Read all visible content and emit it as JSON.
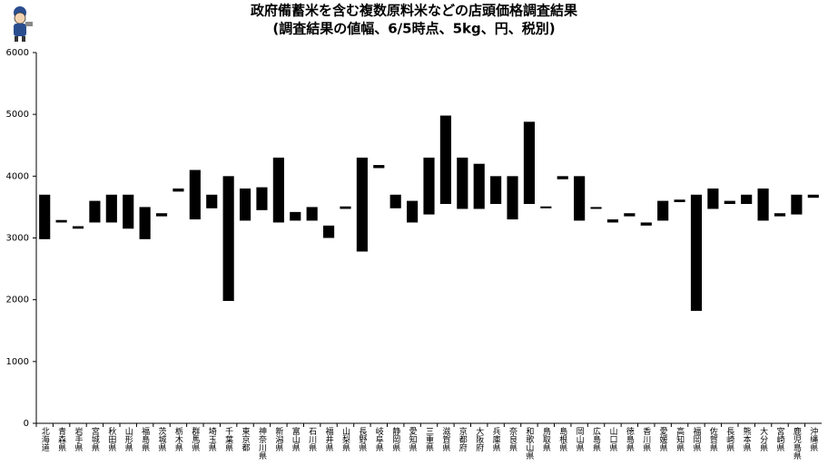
{
  "chart_data": {
    "type": "range_bar",
    "title": "政府備蓄米を含む複数原料米などの店頭価格調査結果",
    "subtitle": "(調査結果の値幅、6/5時点、5kg、円、税別)",
    "categories": [
      "北海道",
      "青森県",
      "岩手県",
      "宮城県",
      "秋田県",
      "山形県",
      "福島県",
      "茨城県",
      "栃木県",
      "群馬県",
      "埼玉県",
      "千葉県",
      "東京都",
      "神奈川県",
      "新潟県",
      "富山県",
      "石川県",
      "福井県",
      "山梨県",
      "長野県",
      "岐阜県",
      "静岡県",
      "愛知県",
      "三重県",
      "滋賀県",
      "京都府",
      "大阪府",
      "兵庫県",
      "奈良県",
      "和歌山県",
      "鳥取県",
      "島根県",
      "岡山県",
      "広島県",
      "山口県",
      "徳島県",
      "香川県",
      "愛媛県",
      "高知県",
      "福岡県",
      "佐賀県",
      "長崎県",
      "熊本県",
      "大分県",
      "宮崎県",
      "鹿児島県",
      "沖縄県"
    ],
    "low": [
      2980,
      3250,
      3150,
      3250,
      3250,
      3150,
      2980,
      3350,
      3750,
      3300,
      3480,
      1980,
      3280,
      3450,
      3250,
      3280,
      3280,
      3000,
      3470,
      2780,
      4130,
      3480,
      3250,
      3380,
      3550,
      3470,
      3470,
      3550,
      3300,
      3550,
      3480,
      3950,
      3280,
      3470,
      3250,
      3350,
      3200,
      3280,
      3580,
      1820,
      3470,
      3550,
      3550,
      3280,
      3350,
      3380,
      3650
    ],
    "high": [
      3700,
      3290,
      3190,
      3600,
      3700,
      3700,
      3500,
      3400,
      3800,
      4100,
      3700,
      4000,
      3800,
      3820,
      4300,
      3420,
      3500,
      3200,
      3510,
      4300,
      4180,
      3700,
      3600,
      4300,
      4980,
      4300,
      4200,
      4000,
      4000,
      4880,
      3510,
      4000,
      4000,
      3500,
      3300,
      3400,
      3250,
      3600,
      3620,
      3700,
      3800,
      3600,
      3700,
      3800,
      3400,
      3700,
      3700
    ],
    "color": "#000000",
    "ylim": [
      0,
      6000
    ],
    "yticks": [
      0,
      1000,
      2000,
      3000,
      4000,
      5000,
      6000
    ],
    "grid": false
  }
}
